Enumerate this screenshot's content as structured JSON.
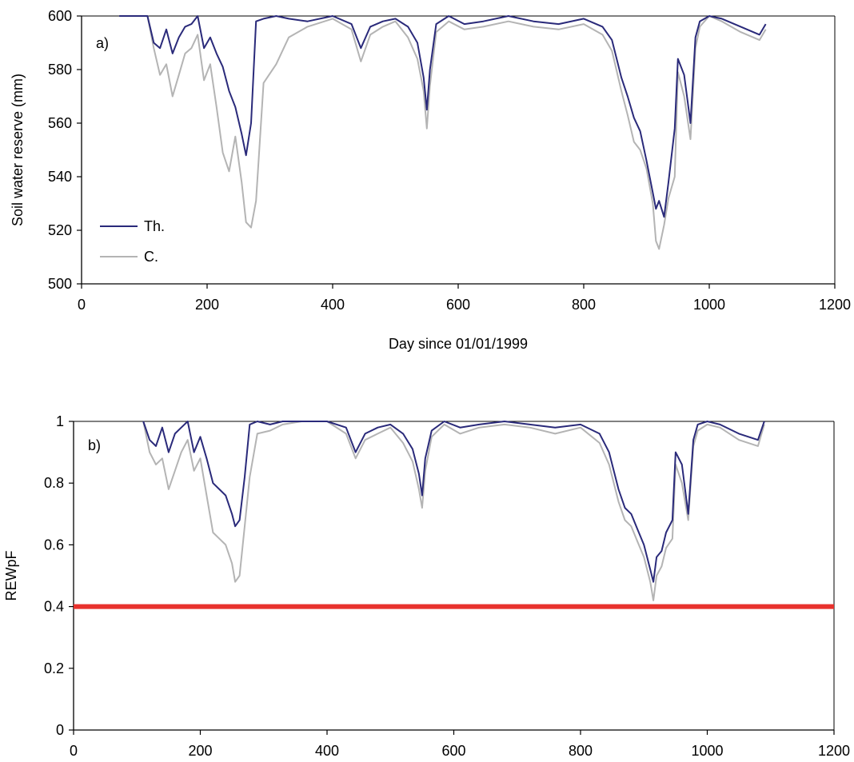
{
  "chart_data": [
    {
      "type": "line",
      "panel_label": "a)",
      "xlabel": "Day since 01/01/1999",
      "ylabel": "Soil water reserve (mm)",
      "xlim": [
        0,
        1200
      ],
      "ylim": [
        500,
        600
      ],
      "x_ticks": [
        "0",
        "200",
        "400",
        "600",
        "800",
        "1000",
        "1200"
      ],
      "y_ticks": [
        "500",
        "520",
        "540",
        "560",
        "580",
        "600"
      ],
      "legend": {
        "placement": "lower-left",
        "entries": [
          "Th.",
          "C."
        ]
      },
      "series": [
        {
          "name": "Th.",
          "color": "#2a2a7a",
          "x": [
            60,
            105,
            115,
            125,
            135,
            145,
            155,
            165,
            175,
            185,
            195,
            205,
            215,
            225,
            235,
            245,
            255,
            262,
            270,
            278,
            290,
            310,
            330,
            360,
            400,
            430,
            445,
            460,
            480,
            500,
            520,
            535,
            545,
            550,
            555,
            565,
            585,
            610,
            640,
            680,
            720,
            760,
            800,
            830,
            845,
            860,
            870,
            880,
            890,
            900,
            910,
            915,
            920,
            928,
            935,
            945,
            950,
            960,
            970,
            978,
            985,
            1000,
            1020,
            1050,
            1080,
            1090
          ],
          "y": [
            600,
            600,
            590,
            588,
            595,
            586,
            592,
            596,
            597,
            600,
            588,
            592,
            586,
            581,
            572,
            566,
            556,
            548,
            560,
            598,
            599,
            600,
            599,
            598,
            600,
            597,
            588,
            596,
            598,
            599,
            596,
            590,
            577,
            565,
            580,
            597,
            600,
            597,
            598,
            600,
            598,
            597,
            599,
            596,
            591,
            577,
            570,
            562,
            557,
            546,
            534,
            528,
            531,
            525,
            538,
            558,
            584,
            578,
            560,
            592,
            598,
            600,
            599,
            596,
            593,
            597
          ],
          "draw_y": [
            600,
            600,
            590,
            588,
            595,
            586,
            592,
            596,
            597,
            600,
            588,
            592,
            586,
            581,
            572,
            566,
            556,
            548,
            560,
            598,
            599,
            600,
            599,
            598,
            600,
            597,
            588,
            596,
            598,
            599,
            596,
            590,
            577,
            565,
            580,
            597,
            600,
            597,
            598,
            600,
            598,
            597,
            599,
            596,
            591,
            577,
            570,
            562,
            557,
            546,
            534,
            528,
            531,
            525,
            538,
            558,
            584,
            578,
            560,
            592,
            598,
            600,
            599,
            596,
            593,
            597
          ]
        },
        {
          "name": "C.",
          "color": "#b4b4b4",
          "x": [
            60,
            105,
            115,
            125,
            135,
            145,
            155,
            165,
            175,
            185,
            195,
            205,
            215,
            225,
            235,
            245,
            255,
            262,
            270,
            278,
            290,
            310,
            330,
            360,
            400,
            430,
            445,
            460,
            480,
            500,
            520,
            535,
            545,
            550,
            555,
            565,
            585,
            610,
            640,
            680,
            720,
            760,
            800,
            830,
            845,
            860,
            870,
            880,
            890,
            900,
            910,
            915,
            920,
            928,
            935,
            945,
            950,
            960,
            970,
            978,
            985,
            1000,
            1020,
            1050,
            1080,
            1090
          ],
          "y": [
            600,
            600,
            588,
            578,
            582,
            570,
            578,
            586,
            588,
            593,
            576,
            582,
            566,
            549,
            542,
            555,
            538,
            523,
            521,
            531,
            575,
            582,
            592,
            596,
            599,
            595,
            583,
            593,
            596,
            598,
            592,
            584,
            572,
            558,
            574,
            594,
            598,
            595,
            596,
            598,
            596,
            595,
            597,
            593,
            587,
            572,
            563,
            553,
            550,
            543,
            530,
            516,
            513,
            522,
            532,
            540,
            579,
            570,
            554,
            588,
            596,
            600,
            598,
            594,
            591,
            595
          ],
          "draw_y": [
            600,
            600,
            588,
            578,
            582,
            570,
            578,
            586,
            588,
            593,
            576,
            582,
            566,
            549,
            542,
            555,
            538,
            523,
            521,
            531,
            575,
            582,
            592,
            596,
            599,
            595,
            583,
            593,
            596,
            598,
            592,
            584,
            572,
            558,
            574,
            594,
            598,
            595,
            596,
            598,
            596,
            595,
            597,
            593,
            587,
            572,
            563,
            553,
            550,
            543,
            530,
            516,
            513,
            522,
            532,
            540,
            579,
            570,
            554,
            588,
            596,
            600,
            598,
            594,
            591,
            595
          ]
        }
      ]
    },
    {
      "type": "line",
      "panel_label": "b)",
      "xlabel": "",
      "ylabel": "REWpF",
      "xlim": [
        0,
        1200
      ],
      "ylim": [
        0,
        1
      ],
      "x_ticks": [
        "0",
        "200",
        "400",
        "600",
        "800",
        "1000",
        "1200"
      ],
      "y_ticks": [
        "0",
        "0.2",
        "0.4",
        "0.6",
        "0.8",
        "1"
      ],
      "threshold": {
        "value": 0.4,
        "color": "#e8322d"
      },
      "series": [
        {
          "name": "Th.",
          "color": "#2a2a7a",
          "x": [
            110,
            120,
            130,
            140,
            150,
            160,
            170,
            180,
            190,
            200,
            210,
            220,
            230,
            240,
            250,
            255,
            262,
            270,
            278,
            290,
            310,
            330,
            360,
            400,
            430,
            445,
            460,
            480,
            500,
            520,
            535,
            545,
            550,
            555,
            565,
            585,
            610,
            640,
            680,
            720,
            760,
            800,
            830,
            845,
            860,
            870,
            880,
            890,
            900,
            910,
            915,
            920,
            928,
            935,
            945,
            950,
            960,
            970,
            978,
            985,
            1000,
            1020,
            1050,
            1080,
            1090
          ],
          "y": [
            1.0,
            0.94,
            0.92,
            0.98,
            0.9,
            0.96,
            0.98,
            1.0,
            0.9,
            0.95,
            0.88,
            0.8,
            0.78,
            0.76,
            0.7,
            0.66,
            0.68,
            0.82,
            0.99,
            1.0,
            0.99,
            1.0,
            1.0,
            1.0,
            0.98,
            0.9,
            0.96,
            0.98,
            0.99,
            0.96,
            0.91,
            0.83,
            0.76,
            0.88,
            0.97,
            1.0,
            0.98,
            0.99,
            1.0,
            0.99,
            0.98,
            0.99,
            0.96,
            0.9,
            0.78,
            0.72,
            0.7,
            0.65,
            0.6,
            0.52,
            0.48,
            0.56,
            0.58,
            0.64,
            0.68,
            0.9,
            0.86,
            0.7,
            0.94,
            0.99,
            1.0,
            0.99,
            0.96,
            0.94,
            1.0
          ],
          "draw_y": [
            1.0,
            0.94,
            0.92,
            0.98,
            0.9,
            0.96,
            0.98,
            1.0,
            0.9,
            0.95,
            0.88,
            0.8,
            0.78,
            0.76,
            0.7,
            0.66,
            0.68,
            0.82,
            0.99,
            1.0,
            0.99,
            1.0,
            1.0,
            1.0,
            0.98,
            0.9,
            0.96,
            0.98,
            0.99,
            0.96,
            0.91,
            0.83,
            0.76,
            0.88,
            0.97,
            1.0,
            0.98,
            0.99,
            1.0,
            0.99,
            0.98,
            0.99,
            0.96,
            0.9,
            0.78,
            0.72,
            0.7,
            0.65,
            0.6,
            0.52,
            0.48,
            0.56,
            0.58,
            0.64,
            0.68,
            0.9,
            0.86,
            0.7,
            0.94,
            0.99,
            1.0,
            0.99,
            0.96,
            0.94,
            1.0
          ]
        },
        {
          "name": "C.",
          "color": "#b4b4b4",
          "x": [
            110,
            120,
            130,
            140,
            150,
            160,
            170,
            180,
            190,
            200,
            210,
            220,
            230,
            240,
            250,
            255,
            262,
            270,
            278,
            290,
            310,
            330,
            360,
            400,
            430,
            445,
            460,
            480,
            500,
            520,
            535,
            545,
            550,
            555,
            565,
            585,
            610,
            640,
            680,
            720,
            760,
            800,
            830,
            845,
            860,
            870,
            880,
            890,
            900,
            910,
            915,
            920,
            928,
            935,
            945,
            950,
            960,
            970,
            978,
            985,
            1000,
            1020,
            1050,
            1080,
            1090
          ],
          "y": [
            1.0,
            0.9,
            0.86,
            0.88,
            0.78,
            0.84,
            0.9,
            0.94,
            0.84,
            0.88,
            0.76,
            0.64,
            0.62,
            0.6,
            0.54,
            0.48,
            0.5,
            0.66,
            0.82,
            0.96,
            0.97,
            0.99,
            1.0,
            1.0,
            0.96,
            0.88,
            0.94,
            0.96,
            0.98,
            0.93,
            0.87,
            0.78,
            0.72,
            0.84,
            0.95,
            0.99,
            0.96,
            0.98,
            0.99,
            0.98,
            0.96,
            0.98,
            0.93,
            0.86,
            0.74,
            0.68,
            0.66,
            0.61,
            0.56,
            0.48,
            0.42,
            0.5,
            0.53,
            0.59,
            0.62,
            0.86,
            0.8,
            0.68,
            0.92,
            0.97,
            0.99,
            0.98,
            0.94,
            0.92,
            0.99
          ],
          "draw_y": [
            1.0,
            0.9,
            0.86,
            0.88,
            0.78,
            0.84,
            0.9,
            0.94,
            0.84,
            0.88,
            0.76,
            0.64,
            0.62,
            0.6,
            0.54,
            0.48,
            0.5,
            0.66,
            0.82,
            0.96,
            0.97,
            0.99,
            1.0,
            1.0,
            0.96,
            0.88,
            0.94,
            0.96,
            0.98,
            0.93,
            0.87,
            0.78,
            0.72,
            0.84,
            0.95,
            0.99,
            0.96,
            0.98,
            0.99,
            0.98,
            0.96,
            0.98,
            0.93,
            0.86,
            0.74,
            0.68,
            0.66,
            0.61,
            0.56,
            0.48,
            0.42,
            0.5,
            0.53,
            0.59,
            0.62,
            0.86,
            0.8,
            0.68,
            0.92,
            0.97,
            0.99,
            0.98,
            0.94,
            0.92,
            0.99
          ]
        }
      ]
    }
  ]
}
